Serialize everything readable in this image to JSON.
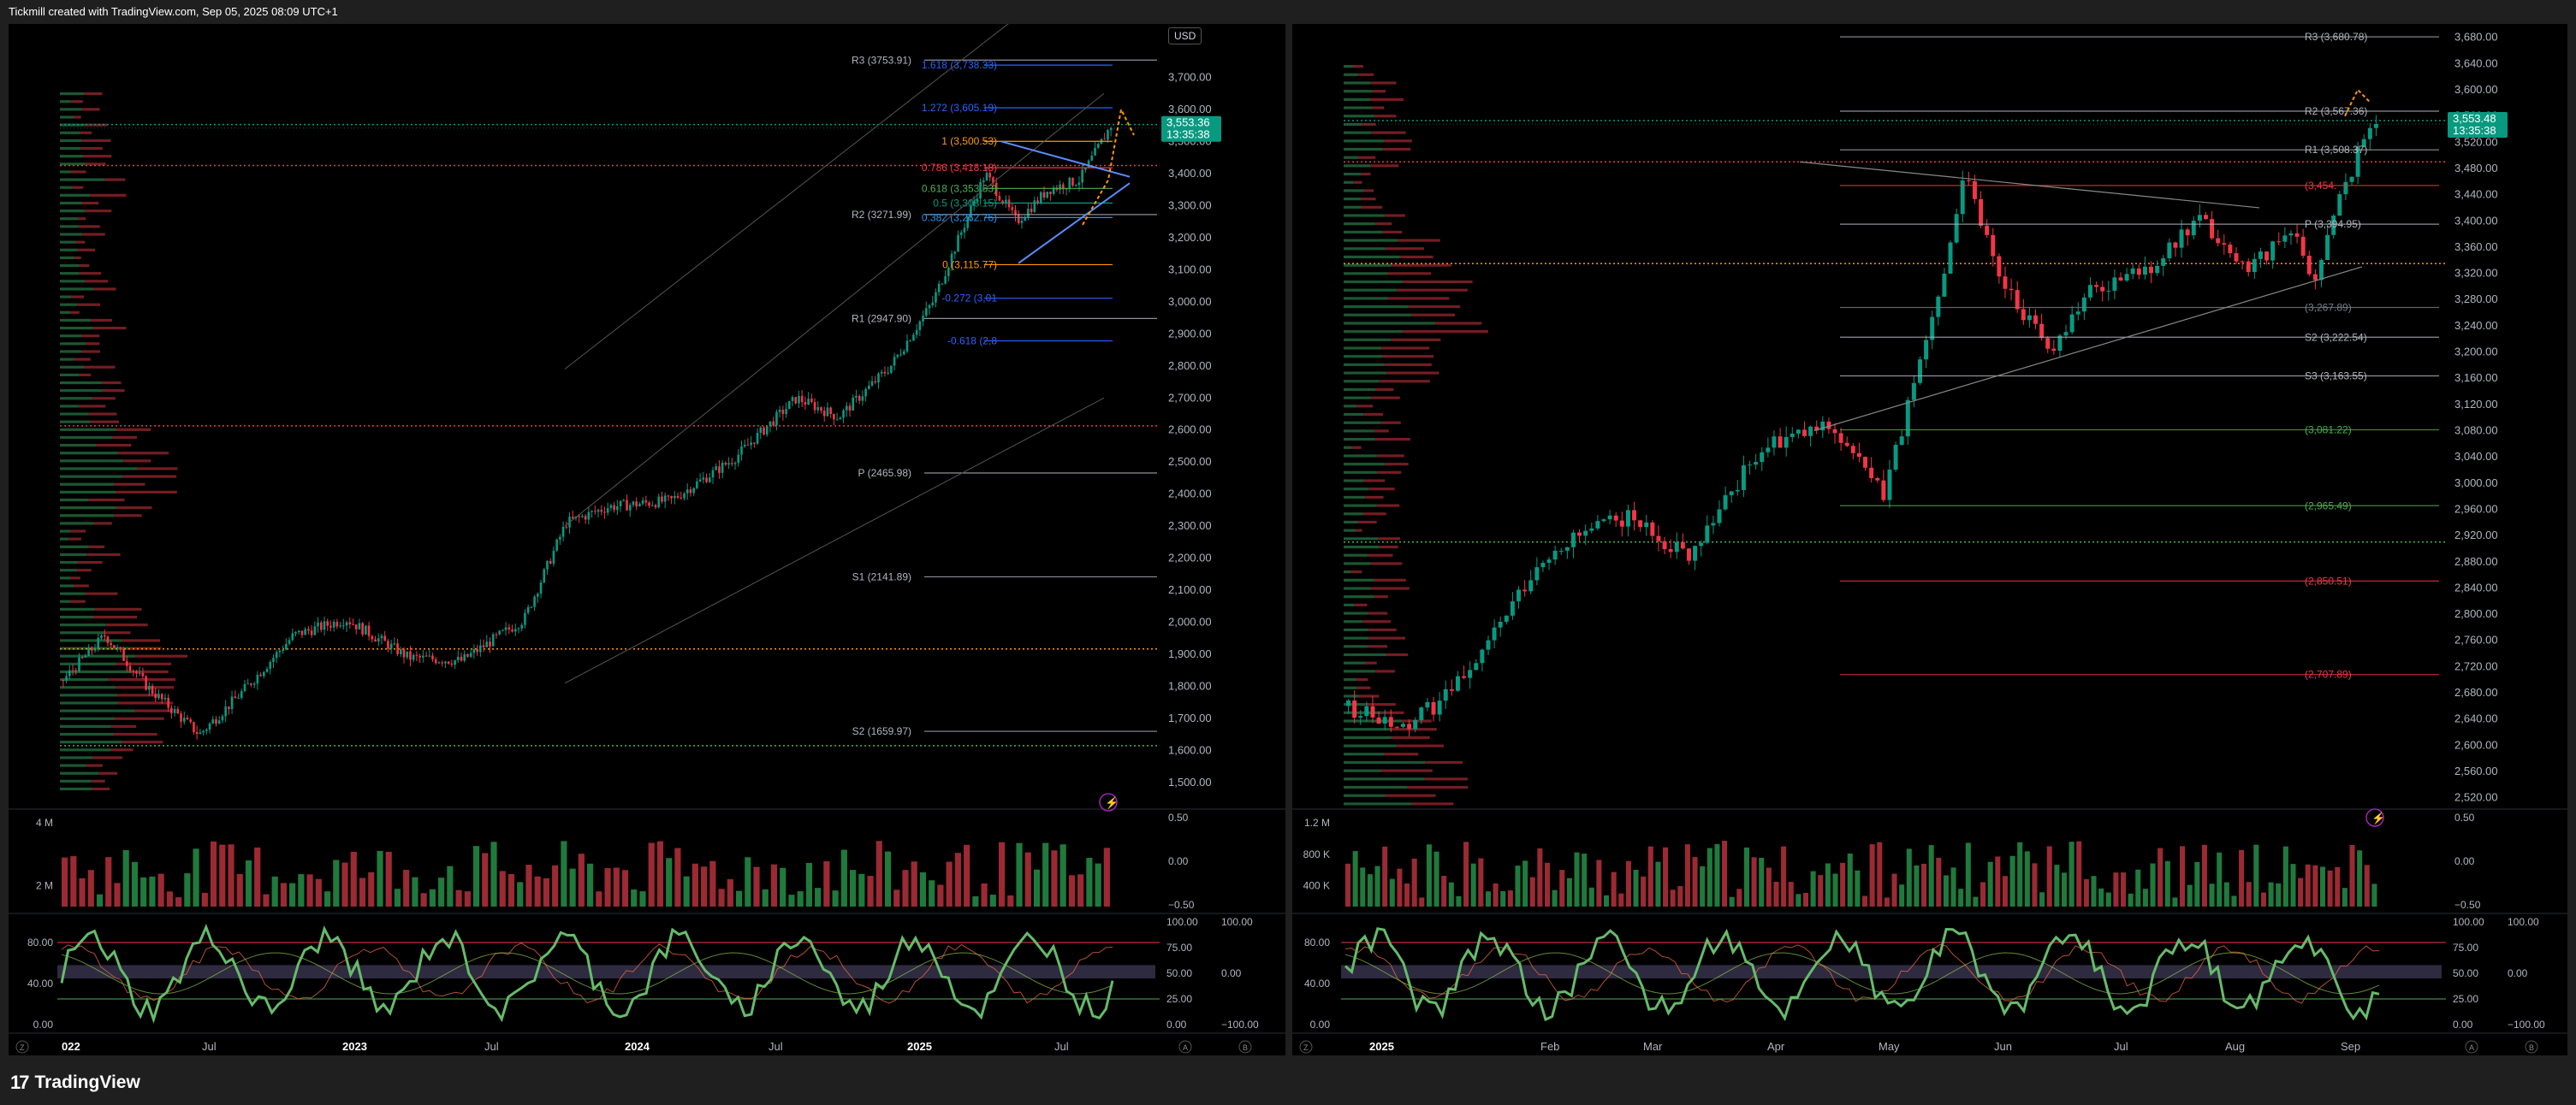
{
  "header": {
    "attribution": "Tickmill created with TradingView.com, Sep 05, 2025 08:09 UTC+1"
  },
  "footer": {
    "logo_mark": "17",
    "brand": "TradingView"
  },
  "colors": {
    "up": "#089981",
    "down": "#f23645",
    "bg": "#000000",
    "green_label": "#22ab94",
    "axis_text": "#b2b5be"
  },
  "chart_left": {
    "currency": "USD",
    "price_axis": [
      "3,700.00",
      "3,600.00",
      "3,500.00",
      "3,400.00",
      "3,300.00",
      "3,200.00",
      "3,100.00",
      "3,000.00",
      "2,900.00",
      "2,800.00",
      "2,700.00",
      "2,600.00",
      "2,500.00",
      "2,400.00",
      "2,300.00",
      "2,200.00",
      "2,100.00",
      "2,000.00",
      "1,900.00",
      "1,800.00",
      "1,700.00",
      "1,600.00",
      "1,500.00"
    ],
    "price_range": [
      1460,
      3760
    ],
    "time_axis": [
      "022",
      "Jul",
      "2023",
      "Jul",
      "2024",
      "Jul",
      "2025",
      "Jul"
    ],
    "last_price": "3,553.36",
    "countdown": "13:35:38",
    "pivots": [
      {
        "label": "R3 (3753.91)",
        "value": 3753.91
      },
      {
        "label": "R2 (3271.99)",
        "value": 3271.99
      },
      {
        "label": "R1 (2947.90)",
        "value": 2947.9
      },
      {
        "label": "P (2465.98)",
        "value": 2465.98
      },
      {
        "label": "S1 (2141.89)",
        "value": 2141.89
      },
      {
        "label": "S2 (1659.97)",
        "value": 1659.97
      }
    ],
    "fibs": [
      {
        "label": "1.618 (3,738.33)",
        "value": 3738.33,
        "color": "#2962ff"
      },
      {
        "label": "1.272 (3,605.19)",
        "value": 3605.19,
        "color": "#2962ff"
      },
      {
        "label": "1 (3,500.53)",
        "value": 3500.53,
        "color": "#ff9800"
      },
      {
        "label": "0.786 (3,418.18)",
        "value": 3418.18,
        "color": "#f23645"
      },
      {
        "label": "0.618 (3,353.63)",
        "value": 3353.63,
        "color": "#4caf50"
      },
      {
        "label": "0.5 (3,308.15)",
        "value": 3308.15,
        "color": "#089981"
      },
      {
        "label": "0.382 (3,262.76)",
        "value": 3262.76,
        "color": "#2196f3"
      },
      {
        "label": "0 (3,115.77)",
        "value": 3115.77,
        "color": "#ff9800"
      },
      {
        "label": "-0.272 (3,01",
        "value": 3011.0,
        "color": "#2962ff"
      },
      {
        "label": "-0.618 (2,8",
        "value": 2878.0,
        "color": "#2962ff"
      }
    ],
    "volume_axis": [
      "4 M",
      "2 M"
    ],
    "volume_right_axis": [
      "0.50",
      "0.00",
      "−0.50"
    ],
    "osc_axis": [
      "80.00",
      "40.00",
      "0.00"
    ],
    "osc_right_axis": [
      "100.00",
      "75.00",
      "50.00",
      "25.00",
      "0.00"
    ],
    "osc_right_axis2": [
      "100.00",
      "0.00",
      "−100.00"
    ]
  },
  "chart_right": {
    "price_axis": [
      "3,680.00",
      "3,640.00",
      "3,600.00",
      "3,560.00",
      "3,520.00",
      "3,480.00",
      "3,440.00",
      "3,400.00",
      "3,360.00",
      "3,320.00",
      "3,280.00",
      "3,240.00",
      "3,200.00",
      "3,160.00",
      "3,120.00",
      "3,080.00",
      "3,040.00",
      "3,000.00",
      "2,960.00",
      "2,920.00",
      "2,880.00",
      "2,840.00",
      "2,800.00",
      "2,760.00",
      "2,720.00",
      "2,680.00",
      "2,640.00",
      "2,600.00",
      "2,560.00",
      "2,520.00"
    ],
    "price_range": [
      2500,
      3690
    ],
    "time_axis": [
      "2025",
      "Feb",
      "Mar",
      "Apr",
      "May",
      "Jun",
      "Jul",
      "Aug",
      "Sep"
    ],
    "last_price": "3,553.48",
    "countdown": "13:35:38",
    "pivots": [
      {
        "label": "R3 (3,680.78)",
        "value": 3680.78,
        "color": "#b2b5be"
      },
      {
        "label": "R2 (3,567.36)",
        "value": 3567.36,
        "color": "#b2b5be"
      },
      {
        "label": "R1 (3,508.37)",
        "value": 3508.37,
        "color": "#b2b5be"
      },
      {
        "label": "(3,454.",
        "value": 3454.0,
        "color": "#f23645"
      },
      {
        "label": "P (3,394.95)",
        "value": 3394.95,
        "color": "#b2b5be"
      },
      {
        "label": "(3,267.89)",
        "value": 3267.89,
        "color": "#787b86"
      },
      {
        "label": "S2 (3,222.54)",
        "value": 3222.54,
        "color": "#b2b5be"
      },
      {
        "label": "S3 (3,163.55)",
        "value": 3163.55,
        "color": "#b2b5be"
      },
      {
        "label": "(3,081.22)",
        "value": 3081.22,
        "color": "#4caf50"
      },
      {
        "label": "(2,965.49)",
        "value": 2965.49,
        "color": "#4caf50"
      },
      {
        "label": "(2,850.51)",
        "value": 2850.51,
        "color": "#f23645"
      },
      {
        "label": "(2,707.89)",
        "value": 2707.89,
        "color": "#f23645"
      }
    ],
    "volume_axis": [
      "1.2 M",
      "800 K",
      "400 K"
    ],
    "volume_right_axis": [
      "0.50",
      "0.00",
      "−0.50"
    ],
    "osc_axis": [
      "80.00",
      "40.00",
      "0.00"
    ],
    "osc_right_axis": [
      "100.00",
      "75.00",
      "50.00",
      "25.00",
      "0.00"
    ],
    "osc_right_axis2": [
      "100.00",
      "0.00",
      "−100.00"
    ]
  },
  "bottom_icons": {
    "left": "Z",
    "right_a": "A",
    "right_b": "B"
  }
}
